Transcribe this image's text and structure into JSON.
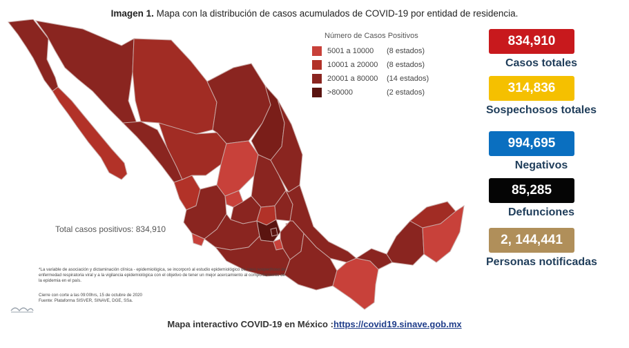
{
  "caption": {
    "bold": "Imagen 1.",
    "text": "Mapa con la distribución de casos acumulados de COVID-19 por entidad de residencia."
  },
  "legend": {
    "title": "Número de Casos Positivos",
    "items": [
      {
        "range": "5001 a  10000",
        "count": "(8 estados)",
        "color": "#c8413a"
      },
      {
        "range": "10001 a  20000",
        "count": "(8 estados)",
        "color": "#b23228"
      },
      {
        "range": "20001 a  80000",
        "count": "(14 estados)",
        "color": "#8a2520"
      },
      {
        "range": ">80000",
        "count": "(2 estados)",
        "color": "#5a1410"
      }
    ]
  },
  "total_text": "Total casos positivos: 834,910",
  "footnote": "*La variable de asociación y dictaminación clínica - epidemiológica, se incorporó al estudio epidemiológico de caso sospechoso de enfermedad respiratoria viral y a la vigilancia epidemiológica con el objetivo de tener un mejor acercamiento al comportamiento de la epidemia en el país.",
  "closing": {
    "line1": "Cierre con corte a las 09:00hrs, 15 de octubre de 2020",
    "line2": "Fuente: Plataforma SISVER, SINAVE, DGE, SSa."
  },
  "stats": [
    {
      "value": "834,910",
      "label": "Casos totales",
      "bg": "#c8191d",
      "fg": "#ffffff"
    },
    {
      "value": "314,836",
      "label": "Sospechosos totales",
      "bg": "#f5c000",
      "fg": "#ffffff"
    },
    {
      "value": "994,695",
      "label": "Negativos",
      "bg": "#0a6fc0",
      "fg": "#ffffff"
    },
    {
      "value": "85,285",
      "label": "Defunciones",
      "bg": "#050505",
      "fg": "#ffffff"
    },
    {
      "value": "2, 144,441",
      "label": "Personas notificadas",
      "bg": "#b08f5a",
      "fg": "#ffffff"
    }
  ],
  "bottom": {
    "text": "Mapa interactivo COVID-19 en México :",
    "link": "https://covid19.sinave.gob.mx"
  }
}
